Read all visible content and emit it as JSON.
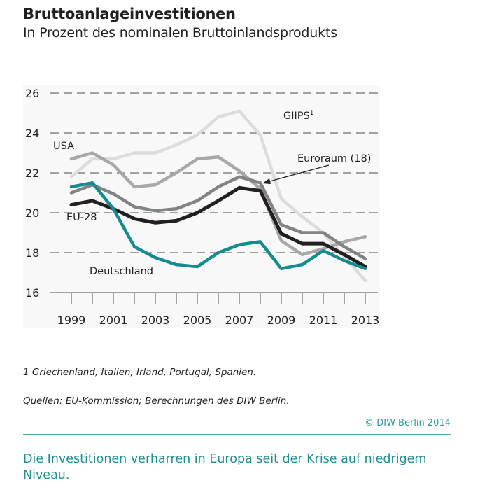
{
  "header": {
    "title": "Bruttoanlageinvestitionen",
    "subtitle": "In Prozent des nominalen Bruttoinlandsprodukts"
  },
  "chart_data": {
    "type": "line",
    "title": "Bruttoanlageinvestitionen",
    "subtitle": "In Prozent des nominalen Bruttoinlandsprodukts",
    "xlabel": "",
    "ylabel": "",
    "x": [
      1999,
      2000,
      2001,
      2002,
      2003,
      2004,
      2005,
      2006,
      2007,
      2008,
      2009,
      2010,
      2011,
      2012,
      2013
    ],
    "x_tick_labels": [
      "1999",
      "2001",
      "2003",
      "2005",
      "2007",
      "2009",
      "2011",
      "2013"
    ],
    "y_ticks": [
      16,
      18,
      20,
      22,
      24,
      26
    ],
    "ylim": [
      16,
      26
    ],
    "grid": "horizontal dashed",
    "series": [
      {
        "name": "GIIPS",
        "label": "GIIPS",
        "superscript": "1",
        "color": "#dcdcdc",
        "values": [
          21.8,
          22.7,
          22.7,
          23.0,
          23.0,
          23.4,
          23.9,
          24.8,
          25.1,
          23.9,
          20.7,
          19.8,
          19.0,
          17.8,
          16.6
        ]
      },
      {
        "name": "USA",
        "label": "USA",
        "color": "#a8a8a8",
        "values": [
          22.7,
          23.0,
          22.4,
          21.3,
          21.4,
          22.0,
          22.7,
          22.8,
          22.1,
          21.2,
          18.6,
          17.9,
          18.2,
          18.55,
          18.8
        ]
      },
      {
        "name": "Euroraum (18)",
        "label": "Euroraum (18)",
        "color": "#838383",
        "values": [
          21.0,
          21.4,
          20.95,
          20.3,
          20.1,
          20.2,
          20.6,
          21.3,
          21.8,
          21.5,
          19.4,
          19.0,
          19.0,
          18.3,
          17.7
        ]
      },
      {
        "name": "EU-28",
        "label": "EU-28",
        "color": "#231f20",
        "values": [
          20.4,
          20.6,
          20.2,
          19.7,
          19.5,
          19.6,
          20.0,
          20.6,
          21.25,
          21.1,
          18.95,
          18.45,
          18.45,
          17.9,
          17.3
        ]
      },
      {
        "name": "Deutschland",
        "label": "Deutschland",
        "color": "#148c8e",
        "values": [
          21.3,
          21.5,
          20.2,
          18.3,
          17.75,
          17.4,
          17.3,
          18.0,
          18.4,
          18.55,
          17.2,
          17.4,
          18.1,
          17.6,
          17.2
        ]
      }
    ],
    "annotations": [
      {
        "text": "Euroraum (18)",
        "arrow_to": {
          "x": 2008,
          "y": 21.5
        }
      }
    ]
  },
  "footnotes": {
    "note1": "1 Griechenland, Italien, Irland, Portugal, Spanien.",
    "sources": "Quellen: EU-Kommission; Berechnungen des DIW Berlin."
  },
  "copyright": "© DIW Berlin 2014",
  "caption": "Die Investitionen verharren in Europa seit der Krise auf niedrigem Niveau."
}
